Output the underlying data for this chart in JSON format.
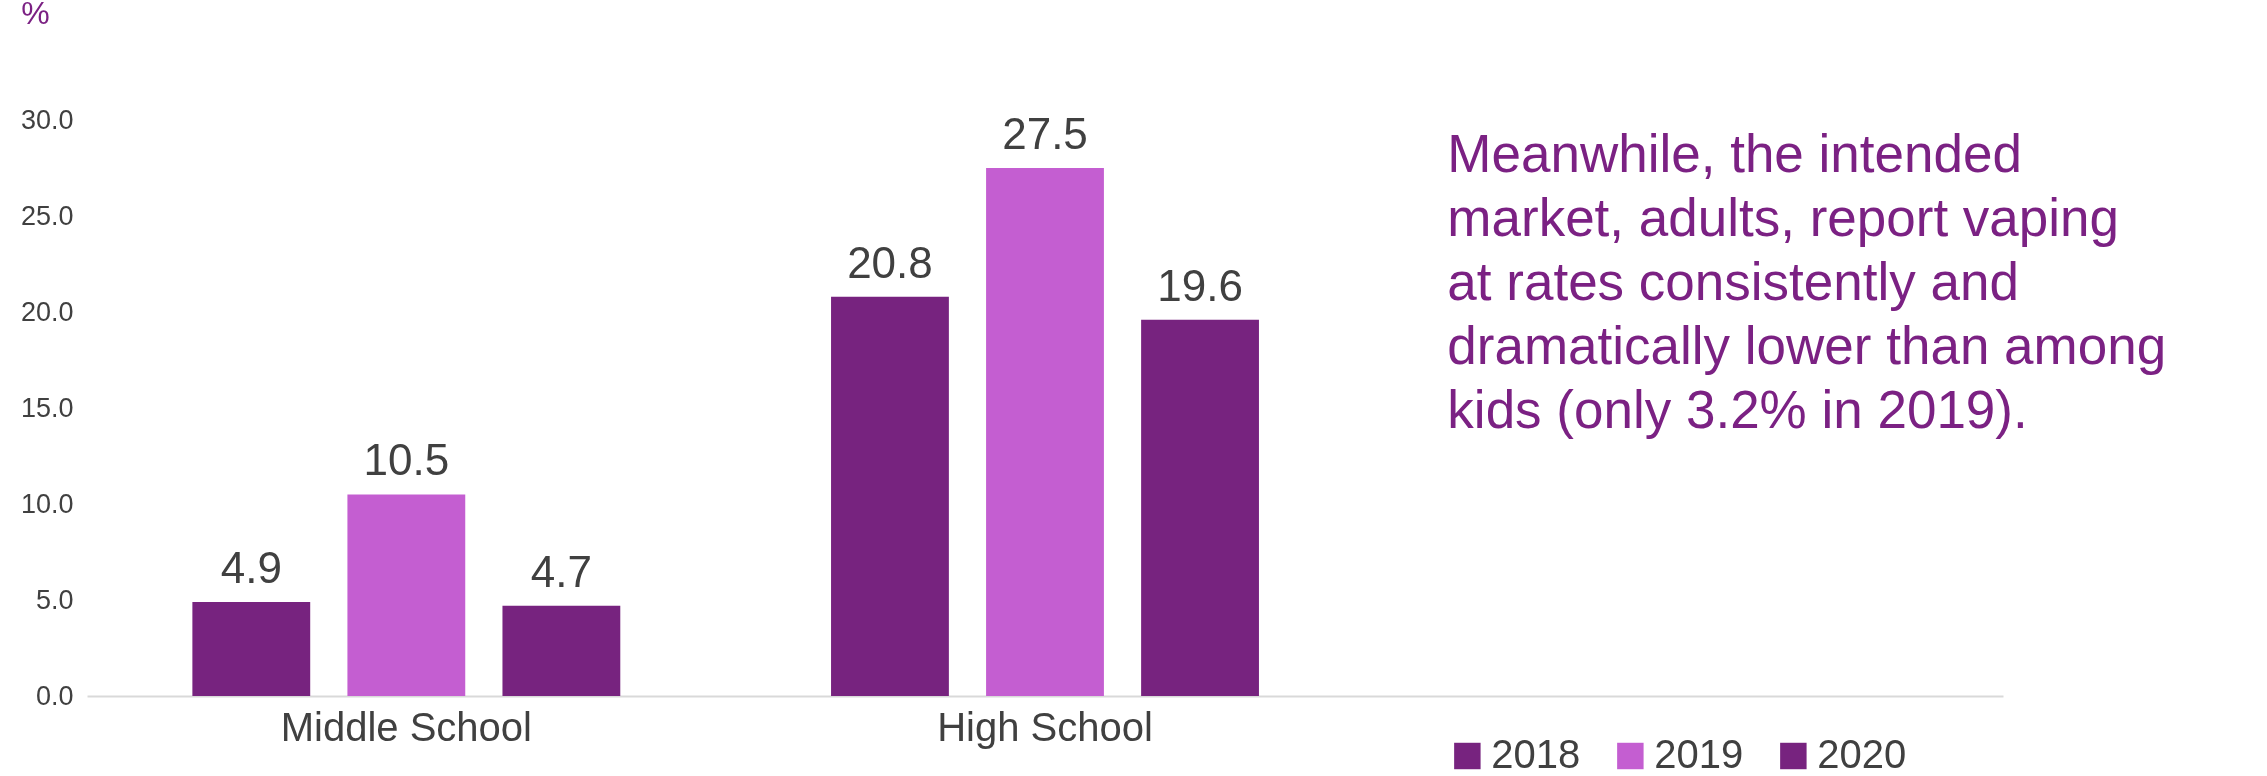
{
  "chart_data": {
    "type": "bar",
    "ylabel": "%",
    "categories": [
      "Middle School",
      "High School",
      null
    ],
    "series": [
      {
        "name": "2018",
        "color": "#77237f",
        "values": [
          4.9,
          20.8,
          null
        ]
      },
      {
        "name": "2019",
        "color": "#c45ed1",
        "values": [
          10.5,
          27.5,
          null
        ]
      },
      {
        "name": "2020",
        "color": "#77237f",
        "values": [
          4.7,
          19.6,
          null
        ]
      }
    ],
    "ylim": [
      0,
      30
    ],
    "yticks": [
      {
        "value": 0,
        "label": "0.0"
      },
      {
        "value": 5,
        "label": "5.0"
      },
      {
        "value": 10,
        "label": "10.0"
      },
      {
        "value": 15,
        "label": "15.0"
      },
      {
        "value": 20,
        "label": "20.0"
      },
      {
        "value": 25,
        "label": "25.0"
      },
      {
        "value": 30,
        "label": "30.0"
      }
    ],
    "data_labels": true,
    "grid": false,
    "legend": "bottom right",
    "annotations": [
      "Meanwhile, the intended market, adults, report vaping at rates consistently and dramatically lower than among kids (only 3.2% in 2019)."
    ]
  }
}
